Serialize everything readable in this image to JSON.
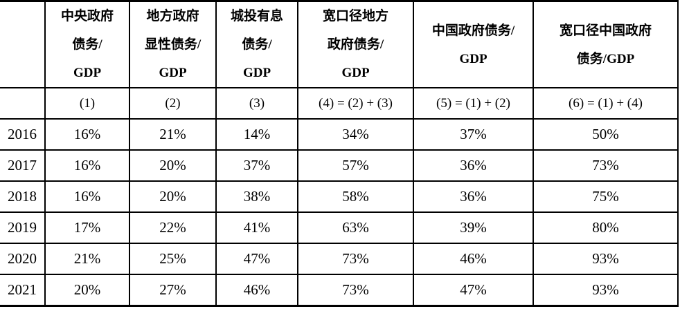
{
  "colors": {
    "background": "#ffffff",
    "border": "#000000",
    "text": "#000000"
  },
  "table": {
    "columns": [
      {
        "title": "中央政府\n债务/\nGDP",
        "formula": "(1)"
      },
      {
        "title": "地方政府\n显性债务/\nGDP",
        "formula": "(2)"
      },
      {
        "title": "城投有息\n债务/\nGDP",
        "formula": "(3)"
      },
      {
        "title": "宽口径地方\n政府债务/\nGDP",
        "formula": "(4) = (2) + (3)"
      },
      {
        "title": "中国政府债务/\nGDP",
        "formula": "(5) = (1) + (2)"
      },
      {
        "title": "宽口径中国政府\n债务/GDP",
        "formula": "(6) = (1) + (4)"
      }
    ],
    "rows": [
      {
        "year": "2016",
        "values": [
          "16%",
          "21%",
          "14%",
          "34%",
          "37%",
          "50%"
        ]
      },
      {
        "year": "2017",
        "values": [
          "16%",
          "20%",
          "37%",
          "57%",
          "36%",
          "73%"
        ]
      },
      {
        "year": "2018",
        "values": [
          "16%",
          "20%",
          "38%",
          "58%",
          "36%",
          "75%"
        ]
      },
      {
        "year": "2019",
        "values": [
          "17%",
          "22%",
          "41%",
          "63%",
          "39%",
          "80%"
        ]
      },
      {
        "year": "2020",
        "values": [
          "21%",
          "25%",
          "47%",
          "73%",
          "46%",
          "93%"
        ]
      },
      {
        "year": "2021",
        "values": [
          "20%",
          "27%",
          "46%",
          "73%",
          "47%",
          "93%"
        ]
      }
    ]
  }
}
